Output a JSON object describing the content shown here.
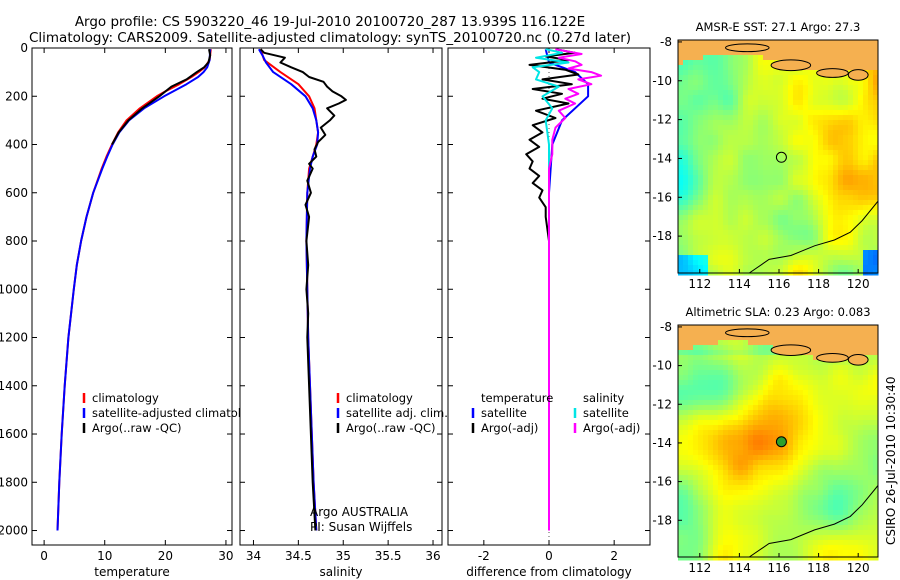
{
  "figure": {
    "title_line1": "Argo profile: CS 5903220_46 19-Jul-2010 20100720_287 13.939S 116.122E",
    "title_line2": "Climatology: CARS2009. Satellite-adjusted climatology: synTS_20100720.nc (0.27d later)",
    "credit_line1": "Argo AUSTRALIA",
    "credit_line2": "PI: Susan Wijffels",
    "stamp": "CSIRO 26-Jul-2010 10:30:40"
  },
  "colors": {
    "clim": "#ff0000",
    "sat": "#0000ff",
    "argo": "#000000",
    "sat_salt": "#00e5e5",
    "argo_salt": "#ff00ff",
    "marker": "#2ca02c"
  },
  "chart_data": [
    {
      "id": "temperature",
      "type": "line",
      "xlabel": "temperature",
      "xlim": [
        -2,
        31
      ],
      "ylim": [
        2060,
        0
      ],
      "xticks": [
        "0",
        "10",
        "20",
        "30"
      ],
      "yticks": [
        "0",
        "200",
        "400",
        "600",
        "800",
        "1000",
        "1200",
        "1400",
        "1600",
        "1800",
        "2000"
      ],
      "legend": [
        "climatology",
        "satellite-adjusted climatology",
        "Argo(..raw -QC)"
      ],
      "series": [
        {
          "name": "climatology",
          "color": "#ff0000",
          "depth": [
            5,
            50,
            80,
            100,
            120,
            150,
            180,
            200,
            250,
            300,
            350,
            400,
            450,
            500,
            600,
            700,
            800,
            900,
            1000,
            1200,
            1400,
            1600,
            1800,
            2000
          ],
          "values": [
            27.5,
            27.3,
            26.5,
            25.5,
            24.3,
            22.3,
            20.0,
            18.6,
            15.8,
            13.6,
            12.2,
            11.2,
            10.3,
            9.5,
            8.1,
            7.0,
            6.1,
            5.4,
            4.9,
            4.0,
            3.4,
            2.9,
            2.5,
            2.2
          ]
        },
        {
          "name": "satellite-adjusted climatology",
          "color": "#0000ff",
          "depth": [
            5,
            50,
            80,
            100,
            120,
            150,
            180,
            200,
            250,
            300,
            350,
            400,
            450,
            500,
            600,
            700,
            800,
            900,
            1000,
            1200,
            1400,
            1600,
            1800,
            2000
          ],
          "values": [
            27.4,
            27.3,
            26.9,
            26.3,
            25.4,
            23.5,
            21.3,
            19.8,
            16.5,
            14.0,
            12.4,
            11.3,
            10.4,
            9.6,
            8.1,
            7.0,
            6.1,
            5.4,
            4.9,
            4.0,
            3.4,
            2.9,
            2.5,
            2.2
          ]
        },
        {
          "name": "Argo(..raw -QC)",
          "color": "#000000",
          "depth": [
            5,
            30,
            60,
            80,
            100,
            130,
            160,
            200,
            250,
            300,
            350,
            400
          ],
          "values": [
            27.2,
            27.4,
            27.1,
            26.4,
            25.2,
            23.5,
            21.0,
            19.0,
            16.2,
            13.9,
            12.3,
            11.2
          ]
        }
      ]
    },
    {
      "id": "salinity",
      "type": "line",
      "xlabel": "salinity",
      "xlim": [
        33.85,
        36.1
      ],
      "ylim": [
        2060,
        0
      ],
      "xticks": [
        "34",
        "34.5",
        "35",
        "35.5",
        "36"
      ],
      "legend": [
        "climatology",
        "satellite adj. clim.",
        "Argo(..raw -QC)"
      ],
      "series": [
        {
          "name": "climatology",
          "color": "#ff0000",
          "depth": [
            5,
            50,
            100,
            150,
            200,
            250,
            300,
            350,
            400,
            450,
            500,
            600,
            800,
            1000,
            1200,
            1400,
            1600,
            1800,
            2000
          ],
          "values": [
            34.08,
            34.12,
            34.3,
            34.5,
            34.62,
            34.68,
            34.7,
            34.72,
            34.7,
            34.66,
            34.62,
            34.6,
            34.59,
            34.6,
            34.61,
            34.63,
            34.65,
            34.67,
            34.7
          ]
        },
        {
          "name": "satellite adj. clim.",
          "color": "#0000ff",
          "depth": [
            5,
            30,
            60,
            100,
            150,
            200,
            250,
            300,
            350,
            400,
            450,
            500,
            600,
            800,
            1000,
            1200,
            1400,
            1600,
            1800,
            2000
          ],
          "values": [
            34.06,
            34.1,
            34.14,
            34.22,
            34.42,
            34.58,
            34.66,
            34.7,
            34.72,
            34.71,
            34.66,
            34.63,
            34.6,
            34.59,
            34.6,
            34.61,
            34.63,
            34.65,
            34.67,
            34.7
          ]
        },
        {
          "name": "Argo(..raw -QC)",
          "color": "#000000",
          "depth": [
            5,
            20,
            40,
            60,
            80,
            100,
            120,
            140,
            160,
            180,
            200,
            215,
            230,
            250,
            280,
            300,
            330,
            360,
            390,
            420,
            450,
            480,
            500,
            550,
            600,
            650,
            700,
            800,
            900,
            1000,
            1100,
            1200,
            1400,
            1600,
            1800,
            2000
          ],
          "values": [
            34.08,
            34.12,
            34.35,
            34.3,
            34.42,
            34.55,
            34.62,
            34.78,
            34.82,
            34.88,
            34.98,
            35.03,
            34.95,
            34.82,
            34.9,
            34.85,
            34.75,
            34.8,
            34.72,
            34.68,
            34.7,
            34.62,
            34.66,
            34.6,
            34.64,
            34.58,
            34.62,
            34.59,
            34.61,
            34.59,
            34.61,
            34.6,
            34.62,
            34.64,
            34.66,
            34.69
          ]
        }
      ]
    },
    {
      "id": "difference",
      "type": "line",
      "xlabel": "difference from climatology",
      "xlim": [
        -3.1,
        3.1
      ],
      "ylim": [
        2060,
        0
      ],
      "xticks": [
        "-2",
        "0",
        "2"
      ],
      "legend": [
        "temperature",
        "satellite",
        "Argo(-adj)",
        "salinity",
        "satellite",
        "Argo(-adj)"
      ],
      "series": [
        {
          "name": "temperature satellite",
          "color": "#0000ff",
          "depth": [
            5,
            60,
            100,
            150,
            200,
            300,
            400,
            600,
            1000,
            2000
          ],
          "values": [
            -0.1,
            0.0,
            0.8,
            1.2,
            1.2,
            0.4,
            0.1,
            0.0,
            0.0,
            0.0
          ]
        },
        {
          "name": "temperature Argo(-adj)",
          "color": "#000000",
          "depth": [
            5,
            20,
            35,
            50,
            70,
            90,
            110,
            130,
            150,
            170,
            190,
            210,
            230,
            260,
            290,
            320,
            350,
            380,
            410,
            440,
            470,
            500,
            530,
            560,
            590,
            620,
            660,
            700,
            800,
            900,
            1000,
            1200,
            1400,
            1600,
            1800,
            2000
          ],
          "values": [
            0.2,
            0.8,
            -0.1,
            0.6,
            -0.6,
            0.5,
            0.9,
            -0.2,
            0.7,
            -0.5,
            0.4,
            -0.2,
            0.6,
            -0.4,
            0.2,
            -0.5,
            -0.2,
            -0.6,
            -0.3,
            -0.7,
            -0.5,
            -0.6,
            -0.3,
            -0.5,
            -0.2,
            -0.3,
            -0.1,
            -0.1,
            0.0,
            0.0,
            0.0,
            0.0,
            0.0,
            0.0,
            0.0,
            0.0
          ]
        },
        {
          "name": "salinity satellite",
          "color": "#00e5e5",
          "depth": [
            5,
            20,
            40,
            60,
            80,
            100,
            130,
            160,
            200,
            250,
            300,
            400,
            500,
            600,
            1000,
            2000
          ],
          "values": [
            -0.1,
            0.4,
            -0.4,
            0.6,
            -0.5,
            -0.3,
            -0.4,
            0.3,
            -0.2,
            0.1,
            -0.1,
            0.0,
            0.0,
            0.0,
            0.0,
            0.0
          ]
        },
        {
          "name": "salinity Argo(-adj)",
          "color": "#ff00ff",
          "depth": [
            5,
            25,
            40,
            55,
            70,
            85,
            100,
            115,
            130,
            150,
            170,
            190,
            210,
            230,
            260,
            290,
            330,
            380,
            440,
            500,
            600,
            1000,
            2000
          ],
          "values": [
            0.2,
            1.0,
            0.3,
            0.8,
            1.0,
            0.6,
            1.3,
            1.6,
            0.9,
            1.3,
            0.6,
            0.9,
            0.5,
            0.8,
            0.3,
            0.5,
            0.2,
            0.1,
            0.1,
            0.0,
            0.0,
            0.0,
            0.0
          ]
        }
      ]
    },
    {
      "id": "sst_map",
      "type": "heatmap",
      "title": "AMSR-E SST: 27.1  Argo: 27.3",
      "xticks": [
        "112",
        "114",
        "116",
        "118",
        "120"
      ],
      "yticks": [
        "-8",
        "-10",
        "-12",
        "-14",
        "-16",
        "-18"
      ],
      "xlim": [
        110.9,
        121.0
      ],
      "ylim": [
        -19.9,
        -7.9
      ],
      "argo_position": {
        "lon": 116.122,
        "lat": -13.939
      }
    },
    {
      "id": "sla_map",
      "type": "heatmap",
      "title": "Altimetric SLA: 0.23  Argo: 0.083",
      "xticks": [
        "112",
        "114",
        "116",
        "118",
        "120"
      ],
      "yticks": [
        "-8",
        "-10",
        "-12",
        "-14",
        "-16",
        "-18"
      ],
      "xlim": [
        110.9,
        121.0
      ],
      "ylim": [
        -19.9,
        -7.9
      ],
      "argo_position": {
        "lon": 116.122,
        "lat": -13.939
      }
    }
  ]
}
